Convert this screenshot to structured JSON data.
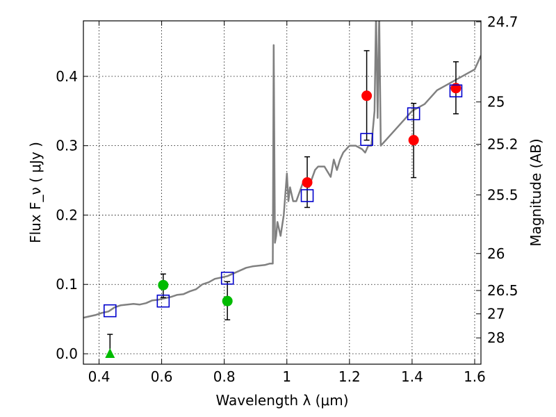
{
  "chart_data": {
    "type": "scatter",
    "xlabel": "Wavelength  λ (μm)",
    "ylabel": "Flux  F_ν  ( μJy )",
    "ylabel2": "Magnitude (AB)",
    "xlim": [
      0.35,
      1.62
    ],
    "ylim": [
      -0.015,
      0.48
    ],
    "grid": true,
    "x_ticks": [
      0.4,
      0.6,
      0.8,
      1.0,
      1.2,
      1.4,
      1.6
    ],
    "x_tick_labels": [
      "0.4",
      "0.6",
      "0.8",
      "1",
      "1.2",
      "1.4",
      "1.6"
    ],
    "y_ticks": [
      0.0,
      0.1,
      0.2,
      0.3,
      0.4
    ],
    "y_tick_labels": [
      "0.0",
      "0.1",
      "0.2",
      "0.3",
      "0.4"
    ],
    "mag_ticks": [
      "24.7",
      "25",
      "25.2",
      "25.5",
      "26",
      "26.5",
      "27",
      "28"
    ],
    "spectrum": {
      "color": "#808080",
      "x": [
        0.35,
        0.37,
        0.39,
        0.41,
        0.43,
        0.45,
        0.47,
        0.49,
        0.51,
        0.53,
        0.55,
        0.57,
        0.59,
        0.61,
        0.63,
        0.65,
        0.67,
        0.69,
        0.71,
        0.73,
        0.75,
        0.77,
        0.79,
        0.81,
        0.83,
        0.85,
        0.87,
        0.89,
        0.91,
        0.93,
        0.945,
        0.955,
        0.958,
        0.962,
        0.966,
        0.97,
        0.98,
        0.99,
        1.0,
        1.005,
        1.01,
        1.02,
        1.03,
        1.05,
        1.07,
        1.09,
        1.1,
        1.12,
        1.14,
        1.15,
        1.16,
        1.17,
        1.18,
        1.2,
        1.22,
        1.24,
        1.25,
        1.26,
        1.27,
        1.28,
        1.285,
        1.29,
        1.295,
        1.3,
        1.32,
        1.34,
        1.36,
        1.38,
        1.4,
        1.42,
        1.44,
        1.46,
        1.48,
        1.5,
        1.52,
        1.54,
        1.56,
        1.58,
        1.6,
        1.62
      ],
      "y": [
        0.052,
        0.054,
        0.056,
        0.059,
        0.061,
        0.067,
        0.07,
        0.071,
        0.072,
        0.071,
        0.073,
        0.077,
        0.078,
        0.08,
        0.082,
        0.085,
        0.086,
        0.09,
        0.093,
        0.1,
        0.103,
        0.108,
        0.11,
        0.112,
        0.116,
        0.12,
        0.124,
        0.126,
        0.127,
        0.128,
        0.13,
        0.13,
        0.445,
        0.16,
        0.17,
        0.19,
        0.17,
        0.2,
        0.26,
        0.22,
        0.24,
        0.22,
        0.22,
        0.245,
        0.24,
        0.265,
        0.27,
        0.27,
        0.255,
        0.28,
        0.265,
        0.28,
        0.29,
        0.3,
        0.3,
        0.295,
        0.29,
        0.3,
        0.3,
        0.35,
        0.49,
        0.34,
        0.49,
        0.3,
        0.31,
        0.32,
        0.33,
        0.34,
        0.35,
        0.355,
        0.36,
        0.37,
        0.38,
        0.385,
        0.39,
        0.395,
        0.4,
        0.405,
        0.41,
        0.43
      ]
    },
    "series": [
      {
        "name": "",
        "marker": "circle",
        "color": "#ff0000",
        "x": [
          1.065,
          1.255,
          1.405,
          1.54
        ],
        "y": [
          0.247,
          0.372,
          0.308,
          0.383
        ],
        "err_low": [
          0.036,
          0.064,
          0.054,
          0.037
        ],
        "err_high": [
          0.037,
          0.065,
          0.053,
          0.038
        ]
      },
      {
        "name": "",
        "marker": "circle",
        "color": "#00bb00",
        "x": [
          0.605,
          0.81
        ],
        "y": [
          0.099,
          0.076
        ],
        "err_low": [
          0.018,
          0.027
        ],
        "err_high": [
          0.016,
          0.028
        ]
      },
      {
        "name": "",
        "marker": "triangle",
        "color": "#00bb00",
        "x": [
          0.435
        ],
        "y": [
          0.0
        ],
        "err_low": [
          0.0
        ],
        "err_high": [
          0.028
        ]
      },
      {
        "name": "",
        "marker": "open-square",
        "color": "#0000cc",
        "x": [
          0.435,
          0.605,
          0.81,
          1.065,
          1.255,
          1.405,
          1.54
        ],
        "y": [
          0.062,
          0.076,
          0.109,
          0.228,
          0.309,
          0.346,
          0.379
        ]
      }
    ]
  }
}
